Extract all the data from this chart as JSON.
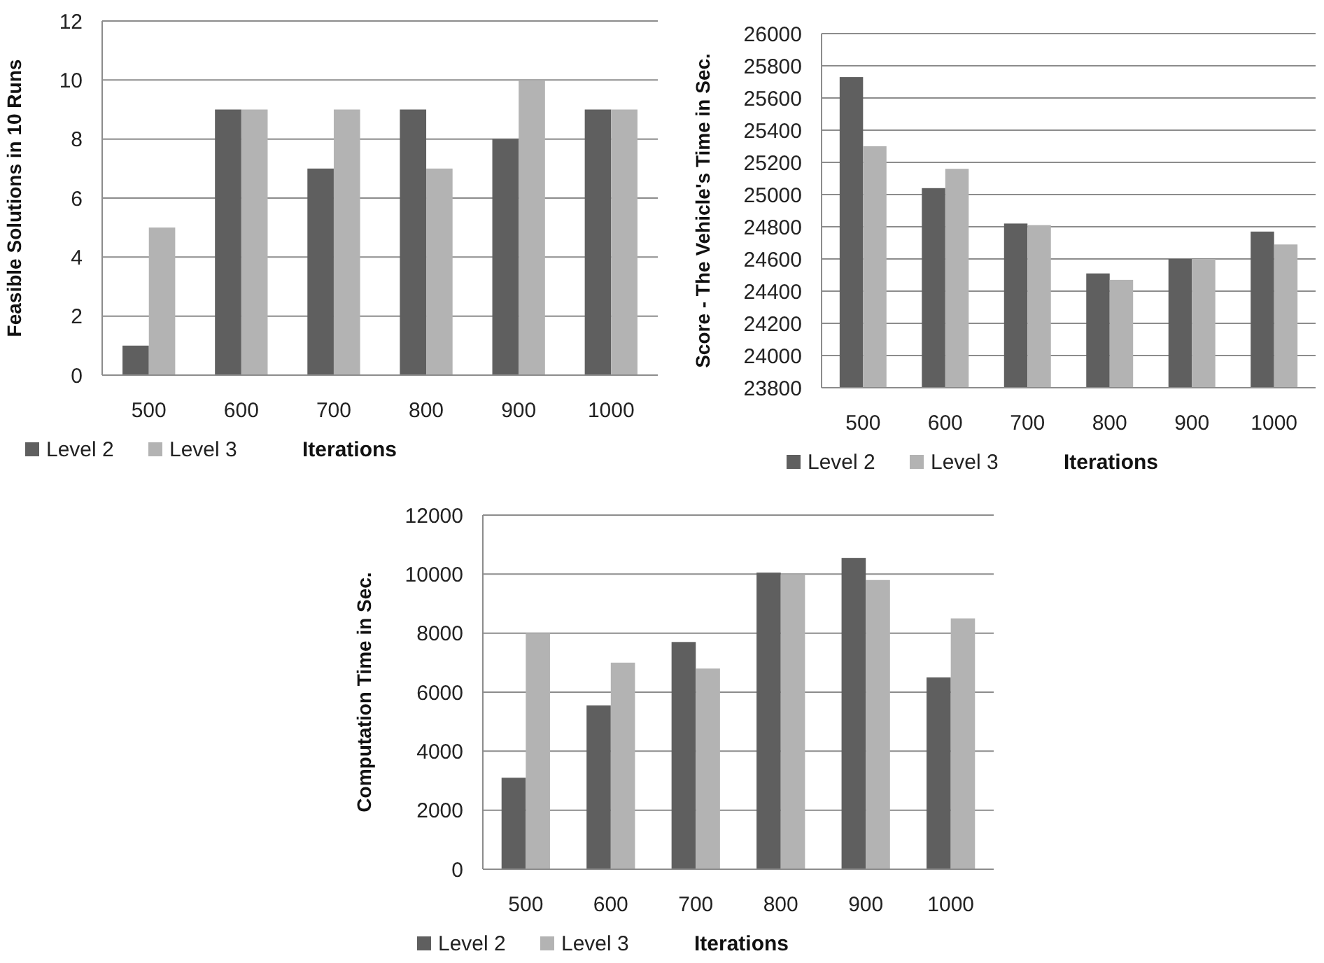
{
  "chart_data": [
    {
      "type": "bar",
      "ylabel": "Feasible Solutions in 10 Runs",
      "xlabel": "Iterations",
      "categories": [
        "500",
        "600",
        "700",
        "800",
        "900",
        "1000"
      ],
      "ylim": [
        0,
        12
      ],
      "yticks": [
        0,
        2,
        4,
        6,
        8,
        10,
        12
      ],
      "grid": "y",
      "legend": "bottom",
      "series": [
        {
          "name": "Level 2",
          "color": "#5f5f5f",
          "values": [
            1,
            9,
            7,
            9,
            8,
            9
          ]
        },
        {
          "name": "Level 3",
          "color": "#b3b3b3",
          "values": [
            5,
            9,
            9,
            7,
            10,
            9
          ]
        }
      ]
    },
    {
      "type": "bar",
      "ylabel": "Score - The Vehicle's Time in Sec.",
      "xlabel": "Iterations",
      "categories": [
        "500",
        "600",
        "700",
        "800",
        "900",
        "1000"
      ],
      "ylim": [
        23800,
        26000
      ],
      "yticks": [
        23800,
        24000,
        24200,
        24400,
        24600,
        24800,
        25000,
        25200,
        25400,
        25600,
        25800,
        26000
      ],
      "grid": "y",
      "legend": "bottom",
      "series": [
        {
          "name": "Level 2",
          "color": "#5f5f5f",
          "values": [
            25730,
            25040,
            24820,
            24510,
            24600,
            24770
          ]
        },
        {
          "name": "Level 3",
          "color": "#b3b3b3",
          "values": [
            25300,
            25160,
            24810,
            24470,
            24600,
            24690
          ]
        }
      ]
    },
    {
      "type": "bar",
      "ylabel": "Computation Time in Sec.",
      "xlabel": "Iterations",
      "categories": [
        "500",
        "600",
        "700",
        "800",
        "900",
        "1000"
      ],
      "ylim": [
        0,
        12000
      ],
      "yticks": [
        0,
        2000,
        4000,
        6000,
        8000,
        10000,
        12000
      ],
      "grid": "y",
      "legend": "bottom",
      "series": [
        {
          "name": "Level 2",
          "color": "#5f5f5f",
          "values": [
            3100,
            5550,
            7700,
            10050,
            10550,
            6500
          ]
        },
        {
          "name": "Level 3",
          "color": "#b3b3b3",
          "values": [
            8000,
            7000,
            6800,
            10000,
            9800,
            8500
          ]
        }
      ]
    }
  ]
}
